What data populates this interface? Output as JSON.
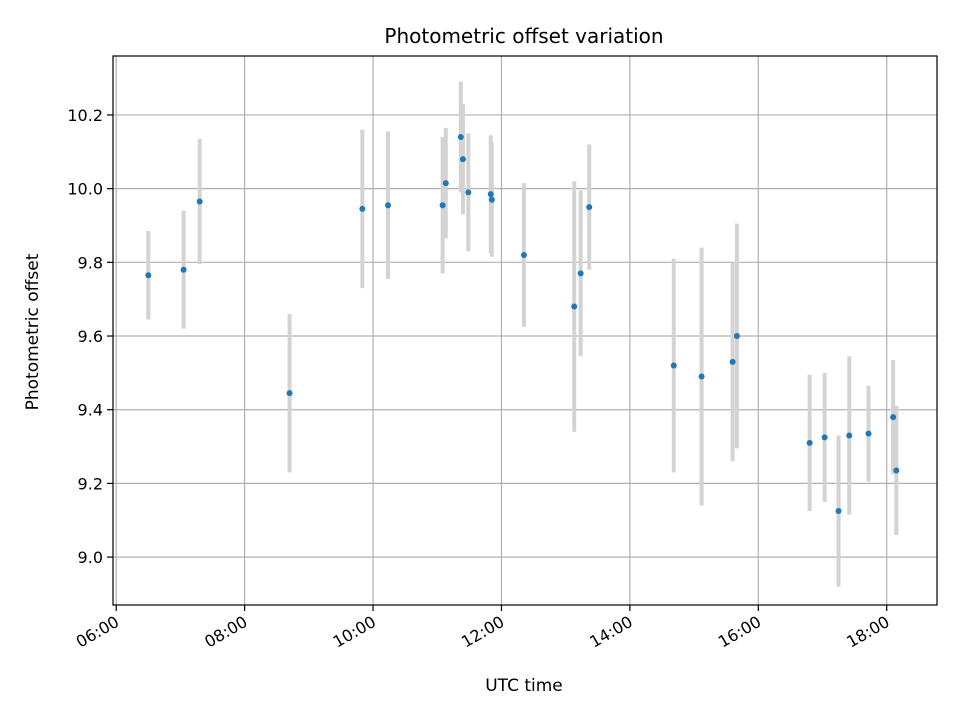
{
  "chart_data": {
    "type": "scatter",
    "title": "Photometric offset variation",
    "xlabel": "UTC time",
    "ylabel": "Photometric offset",
    "x_ticks": [
      "06:00",
      "08:00",
      "10:00",
      "12:00",
      "14:00",
      "16:00",
      "18:00"
    ],
    "y_ticks": [
      "9.0",
      "9.2",
      "9.4",
      "9.6",
      "9.8",
      "10.0",
      "10.2"
    ],
    "xlim": [
      "05:57",
      "18:47"
    ],
    "ylim": [
      8.87,
      10.36
    ],
    "grid": true,
    "error_bars": true,
    "colors": {
      "point": "#1f77b4",
      "errorbar": "#d3d3d3",
      "grid": "#b0b0b0"
    },
    "series": [
      {
        "points": [
          {
            "x": "06:30",
            "y": 9.765,
            "err": 0.12
          },
          {
            "x": "07:03",
            "y": 9.78,
            "err": 0.16
          },
          {
            "x": "07:18",
            "y": 9.965,
            "err": 0.17
          },
          {
            "x": "08:42",
            "y": 9.445,
            "err": 0.215
          },
          {
            "x": "09:50",
            "y": 9.945,
            "err": 0.215
          },
          {
            "x": "10:14",
            "y": 9.955,
            "err": 0.2
          },
          {
            "x": "11:05",
            "y": 9.955,
            "err": 0.185
          },
          {
            "x": "11:08",
            "y": 10.015,
            "err": 0.15
          },
          {
            "x": "11:22",
            "y": 10.14,
            "err": 0.15
          },
          {
            "x": "11:24",
            "y": 10.08,
            "err": 0.15
          },
          {
            "x": "11:29",
            "y": 9.99,
            "err": 0.16
          },
          {
            "x": "11:50",
            "y": 9.985,
            "err": 0.16
          },
          {
            "x": "11:51",
            "y": 9.97,
            "err": 0.155
          },
          {
            "x": "12:21",
            "y": 9.82,
            "err": 0.195
          },
          {
            "x": "13:08",
            "y": 9.68,
            "err": 0.34
          },
          {
            "x": "13:14",
            "y": 9.77,
            "err": 0.225
          },
          {
            "x": "13:22",
            "y": 9.95,
            "err": 0.17
          },
          {
            "x": "14:41",
            "y": 9.52,
            "err": 0.29
          },
          {
            "x": "15:07",
            "y": 9.49,
            "err": 0.35
          },
          {
            "x": "15:36",
            "y": 9.53,
            "err": 0.27
          },
          {
            "x": "15:40",
            "y": 9.6,
            "err": 0.305
          },
          {
            "x": "16:48",
            "y": 9.31,
            "err": 0.185
          },
          {
            "x": "17:02",
            "y": 9.325,
            "err": 0.175
          },
          {
            "x": "17:15",
            "y": 9.125,
            "err": 0.205
          },
          {
            "x": "17:25",
            "y": 9.33,
            "err": 0.215
          },
          {
            "x": "17:43",
            "y": 9.335,
            "err": 0.13
          },
          {
            "x": "18:06",
            "y": 9.38,
            "err": 0.155
          },
          {
            "x": "18:09",
            "y": 9.235,
            "err": 0.175
          }
        ]
      }
    ]
  }
}
